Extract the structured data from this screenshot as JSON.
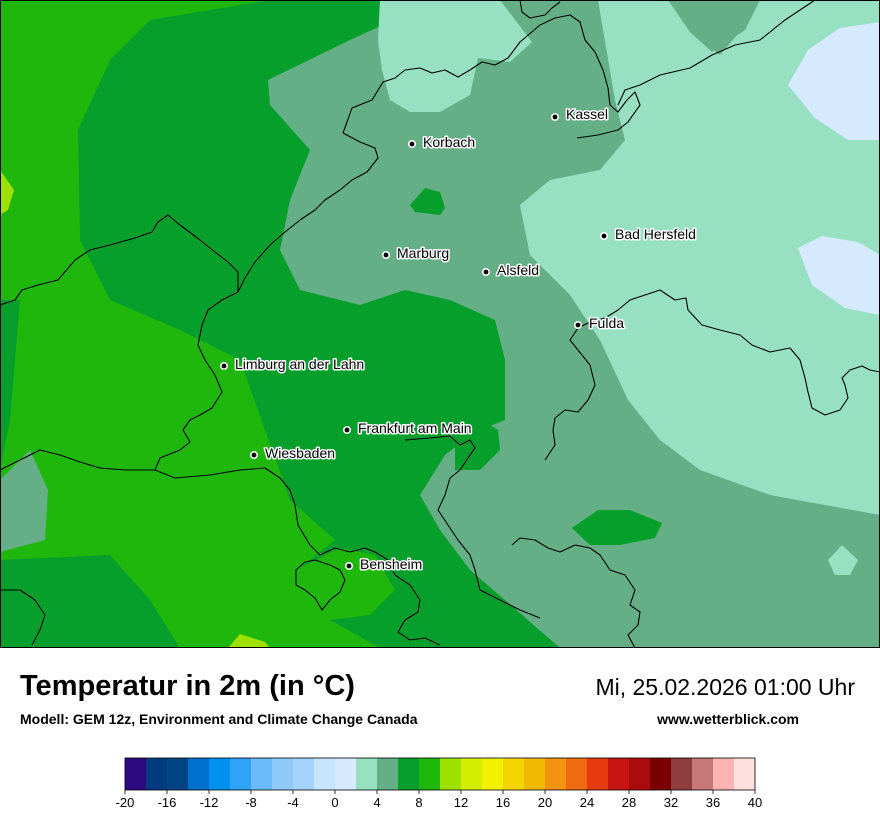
{
  "map": {
    "title": "Temperatur in 2m (in °C)",
    "model_credit": "Modell: GEM 12z, Environment and Climate Change Canada",
    "valid_time": "Mi, 25.02.2026 01:00 Uhr",
    "website": "www.wetterblick.com",
    "cities": [
      {
        "key": "kassel",
        "name": "Kassel"
      },
      {
        "key": "korbach",
        "name": "Korbach"
      },
      {
        "key": "bad-hersfeld",
        "name": "Bad Hersfeld"
      },
      {
        "key": "marburg",
        "name": "Marburg"
      },
      {
        "key": "alsfeld",
        "name": "Alsfeld"
      },
      {
        "key": "fulda",
        "name": "Fulda"
      },
      {
        "key": "limburg",
        "name": "Limburg an der Lahn"
      },
      {
        "key": "frankfurt",
        "name": "Frankfurt am Main"
      },
      {
        "key": "wiesbaden",
        "name": "Wiesbaden"
      },
      {
        "key": "bensheim",
        "name": "Bensheim"
      }
    ],
    "colors": {
      "band_0_2": "#d6eaff",
      "band_2_4": "#98e0c2",
      "band_4_6": "#65af87",
      "band_6_8": "#069f2c",
      "band_8_10": "#20b70c",
      "band_10_12": "#9ee000",
      "border": "#000000"
    }
  },
  "legend": {
    "min": -20,
    "max": 40,
    "step": 2,
    "tick_labels": [
      "-20",
      "-16",
      "-12",
      "-8",
      "-4",
      "0",
      "4",
      "8",
      "12",
      "16",
      "20",
      "24",
      "28",
      "32",
      "36",
      "40"
    ],
    "colors": [
      "#2b0a82",
      "#003a7f",
      "#004486",
      "#0070cc",
      "#0090f0",
      "#31a3f7",
      "#6bbaf9",
      "#8fcafb",
      "#a4d4fd",
      "#c7e5ff",
      "#d6eaff",
      "#98e0c2",
      "#65af87",
      "#069f2c",
      "#20b70c",
      "#9ee000",
      "#d4ee00",
      "#f2f200",
      "#f4d500",
      "#f3b900",
      "#f3930f",
      "#f06a10",
      "#e83a10",
      "#c91414",
      "#aa0c0c",
      "#7a0000",
      "#8f3d3d",
      "#c67777",
      "#ffb3b3",
      "#ffe0e0"
    ]
  }
}
